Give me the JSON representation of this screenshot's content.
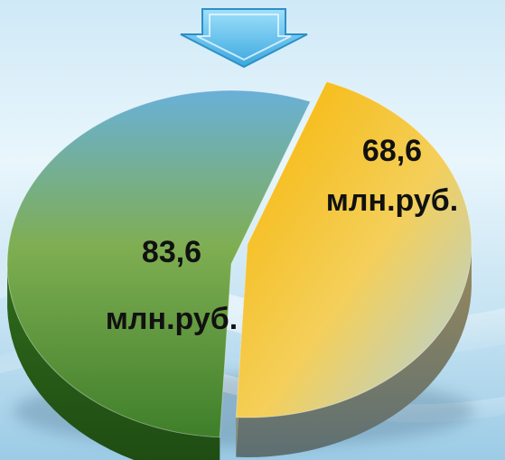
{
  "chart_data": {
    "type": "pie",
    "style": "3d-exploded",
    "slices": [
      {
        "value": 83.6,
        "label_value": "83,6",
        "label_unit": "млн.руб.",
        "color": "#5f9a3a"
      },
      {
        "value": 68.6,
        "label_value": "68,6",
        "label_unit": "млн.руб.",
        "color": "#f5be1c"
      }
    ],
    "indicator": "down-arrow-icon",
    "colors": {
      "arrow": "#6cc8f0",
      "background": "#d8eef8"
    }
  }
}
